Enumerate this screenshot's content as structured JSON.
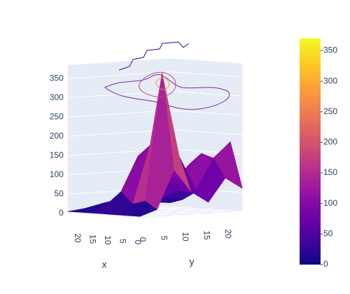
{
  "chart_data": {
    "type": "surface",
    "x": [
      0,
      4,
      8,
      12,
      16,
      20,
      24
    ],
    "y": [
      0,
      4,
      8,
      12,
      16,
      20,
      24
    ],
    "z": [
      [
        5,
        20,
        120,
        60,
        30,
        90,
        60
      ],
      [
        5,
        40,
        370,
        150,
        60,
        140,
        180
      ],
      [
        5,
        30,
        180,
        100,
        80,
        150,
        120
      ],
      [
        5,
        60,
        150,
        80,
        70,
        120,
        100
      ],
      [
        5,
        30,
        60,
        40,
        30,
        50,
        40
      ],
      [
        5,
        20,
        30,
        50,
        20,
        30,
        20
      ],
      [
        5,
        10,
        20,
        15,
        10,
        15,
        10
      ]
    ],
    "xlabel": "x",
    "ylabel": "y",
    "xticks": [
      0,
      5,
      10,
      15,
      20
    ],
    "yticks": [
      0,
      5,
      10,
      15,
      20
    ],
    "zticks": [
      0,
      50,
      100,
      150,
      200,
      250,
      300,
      350
    ],
    "colorscale": [
      "#0d0887",
      "#46039f",
      "#7201a8",
      "#9c179e",
      "#bd3786",
      "#d8576b",
      "#ed7953",
      "#fb9f3a",
      "#fdca26",
      "#f0f921"
    ],
    "colorbar": {
      "cmin": 0,
      "cmax": 370,
      "ticks": [
        0,
        50,
        100,
        150,
        200,
        250,
        300,
        350
      ]
    }
  }
}
